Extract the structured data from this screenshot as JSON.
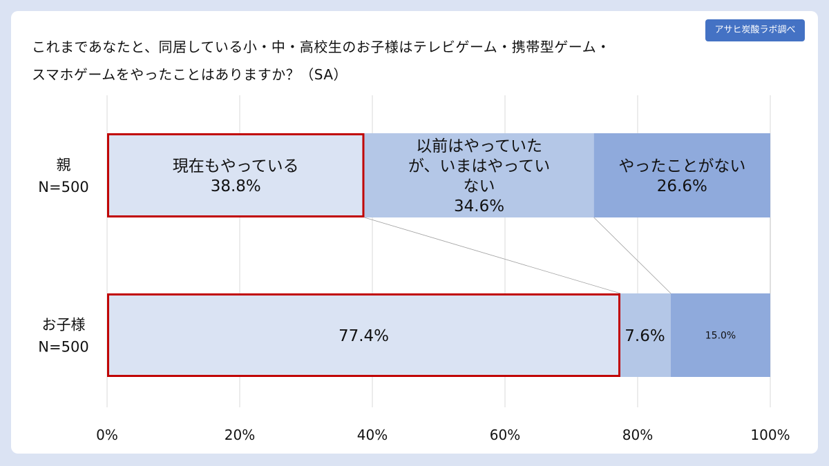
{
  "badge": "アサヒ炭酸ラボ調べ",
  "title_lines": [
    "これまであなたと、同居している小・中・高校生のお子様はテレビゲーム・携帯型ゲーム・",
    "スマホゲームをやったことはありますか？（SA）"
  ],
  "chart_data": {
    "type": "bar",
    "stacked": true,
    "orientation": "horizontal",
    "percent_scale": true,
    "xlim": [
      0,
      100
    ],
    "x_ticks": [
      "0%",
      "20%",
      "40%",
      "60%",
      "80%",
      "100%"
    ],
    "grid": true,
    "categories": [
      {
        "lines": [
          "親",
          "N=500"
        ]
      },
      {
        "lines": [
          "お子様",
          "N=500"
        ]
      }
    ],
    "series": [
      {
        "name": "現在もやっている",
        "color": "#dae3f3",
        "highlight_border": "#c00000",
        "values": [
          38.8,
          77.4
        ],
        "labels": [
          [
            "現在もやっている",
            "38.8%"
          ],
          [
            "77.4%"
          ]
        ]
      },
      {
        "name": "以前はやっていたが、いまはやっていない",
        "color": "#b4c7e7",
        "values": [
          34.6,
          7.6
        ],
        "labels": [
          [
            "以前はやっていた",
            "が、いまはやってい",
            "ない",
            "34.6%"
          ],
          [
            "7.6%"
          ]
        ]
      },
      {
        "name": "やったことがない",
        "color": "#8faadc",
        "values": [
          26.6,
          15.0
        ],
        "labels": [
          [
            "やったことがない",
            "26.6%"
          ],
          [
            "15.0%"
          ]
        ]
      }
    ]
  }
}
